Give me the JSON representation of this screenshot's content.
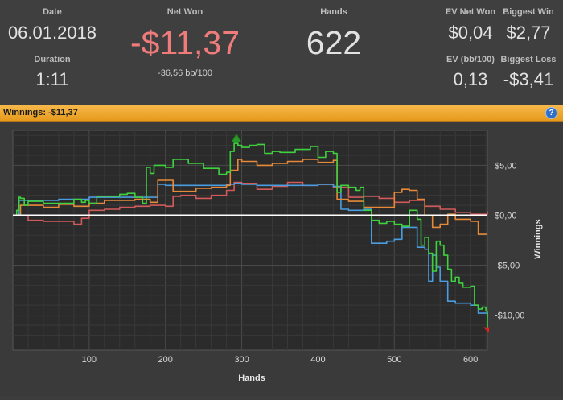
{
  "stats": {
    "date_label": "Date",
    "date_value": "06.01.2018",
    "duration_label": "Duration",
    "duration_value": "1:11",
    "net_won_label": "Net Won",
    "net_won_value": "-$11,37",
    "net_won_sub": "-36,56 bb/100",
    "hands_label": "Hands",
    "hands_value": "622",
    "ev_net_won_label": "EV Net Won",
    "ev_net_won_value": "$0,04",
    "biggest_win_label": "Biggest Win",
    "biggest_win_value": "$2,77",
    "ev_bb_label": "EV (bb/100)",
    "ev_bb_value": "0,13",
    "biggest_loss_label": "Biggest Loss",
    "biggest_loss_value": "-$3,41"
  },
  "panel": {
    "title": "Winnings: -$11,37",
    "help_glyph": "?"
  },
  "colors": {
    "net_won": "#f07b7b",
    "header_bar": "#f0a83a",
    "green": "#3ed23e",
    "orange": "#e68a3a",
    "blue": "#4a9de0",
    "red": "#d25a5a",
    "zero": "#ffffff"
  },
  "chart_data": {
    "type": "line",
    "xlabel": "Hands",
    "ylabel": "Winnings",
    "xlim": [
      0,
      622
    ],
    "ylim": [
      -13.5,
      8.5
    ],
    "x_ticks": [
      100,
      200,
      300,
      400,
      500,
      600
    ],
    "x_tick_labels": [
      "100",
      "200",
      "300",
      "400",
      "500",
      "600"
    ],
    "y_ticks": [
      5,
      0,
      -5,
      -10
    ],
    "y_tick_labels": [
      "$5,00",
      "$0,00",
      "-$5,00",
      "-$10,00"
    ],
    "grid": true,
    "markers": [
      {
        "type": "max",
        "x": 293,
        "y": 7.5,
        "color": "#2a9a2a"
      },
      {
        "type": "min",
        "x": 622,
        "y": -11.37,
        "color": "#e02020"
      }
    ],
    "series": [
      {
        "color": "#3ed23e",
        "x": [
          0,
          5,
          8,
          10,
          15,
          20,
          40,
          80,
          90,
          95,
          100,
          110,
          140,
          150,
          160,
          170,
          175,
          180,
          185,
          200,
          210,
          230,
          250,
          270,
          280,
          285,
          290,
          295,
          300,
          310,
          320,
          330,
          340,
          350,
          370,
          390,
          400,
          410,
          420,
          425,
          430,
          440,
          450,
          455,
          460,
          470,
          480,
          490,
          500,
          510,
          520,
          530,
          535,
          540,
          545,
          550,
          555,
          560,
          565,
          570,
          575,
          580,
          585,
          590,
          600,
          605,
          610,
          615,
          620,
          622
        ],
        "y": [
          0,
          0.5,
          1.8,
          1.7,
          1.0,
          1.4,
          1.2,
          1.6,
          1.3,
          1.5,
          1.2,
          1.9,
          2.1,
          2.2,
          1.8,
          1.2,
          4.8,
          4.2,
          5.0,
          4.8,
          5.6,
          5.2,
          4.7,
          4.1,
          4.3,
          6.4,
          7.2,
          7.0,
          6.8,
          7.0,
          7.1,
          6.2,
          6.4,
          6.3,
          6.6,
          6.9,
          5.8,
          6.4,
          6.2,
          2.3,
          3.0,
          2.8,
          2.5,
          2.8,
          0.5,
          -0.5,
          -0.8,
          -0.6,
          -0.9,
          -1.1,
          0.5,
          -0.4,
          -3.0,
          -2.2,
          -3.8,
          -5.6,
          -2.6,
          -3.0,
          -4.0,
          -5.4,
          -6.6,
          -6.2,
          -6.8,
          -7.2,
          -7.1,
          -9.0,
          -9.4,
          -9.2,
          -9.6,
          -11.37
        ]
      },
      {
        "color": "#e68a3a",
        "x": [
          0,
          10,
          20,
          40,
          60,
          80,
          100,
          120,
          160,
          180,
          190,
          210,
          240,
          260,
          280,
          285,
          295,
          300,
          320,
          340,
          360,
          380,
          400,
          420,
          425,
          440,
          460,
          480,
          500,
          510,
          520,
          530,
          540,
          550,
          560,
          570,
          580,
          600,
          610,
          622
        ],
        "y": [
          0,
          1.0,
          1.0,
          0.8,
          1.1,
          0.9,
          1.2,
          1.5,
          1.6,
          1.3,
          3.5,
          2.4,
          2.7,
          2.8,
          3.0,
          4.5,
          5.6,
          5.4,
          5.0,
          5.2,
          5.4,
          5.6,
          5.3,
          5.5,
          1.6,
          1.4,
          0.8,
          0.8,
          2.3,
          2.6,
          2.5,
          1.6,
          0.0,
          -1.2,
          -0.9,
          0.1,
          -0.4,
          -0.6,
          -1.9,
          -1.9
        ]
      },
      {
        "color": "#4a9de0",
        "x": [
          0,
          8,
          20,
          60,
          100,
          180,
          190,
          200,
          280,
          290,
          300,
          320,
          400,
          420,
          430,
          440,
          460,
          470,
          490,
          500,
          510,
          525,
          530,
          540,
          545,
          550,
          555,
          560,
          570,
          580,
          600,
          610,
          622
        ],
        "y": [
          0,
          1.5,
          1.5,
          1.6,
          1.8,
          1.8,
          3.1,
          3.0,
          3.1,
          3.2,
          3.1,
          3.0,
          3.1,
          2.9,
          0.6,
          0.5,
          0.6,
          -2.8,
          -2.6,
          -2.4,
          -1.2,
          -1.2,
          -3.2,
          -3.4,
          -6.6,
          -4.0,
          -5.2,
          -6.6,
          -8.6,
          -8.8,
          -9.0,
          -9.8,
          -10.2
        ]
      },
      {
        "color": "#d25a5a",
        "x": [
          0,
          20,
          40,
          60,
          80,
          90,
          100,
          120,
          140,
          160,
          180,
          200,
          210,
          220,
          240,
          260,
          280,
          290,
          300,
          320,
          340,
          360,
          380,
          400,
          420,
          440,
          460,
          480,
          500,
          520,
          540,
          560,
          580,
          600,
          622
        ],
        "y": [
          0,
          -0.5,
          -0.6,
          -0.6,
          -0.9,
          -0.3,
          0.5,
          0.6,
          0.8,
          0.9,
          1.0,
          0.9,
          1.9,
          2.0,
          1.7,
          2.0,
          2.5,
          3.3,
          3.2,
          2.6,
          2.9,
          3.3,
          3.0,
          3.1,
          2.8,
          1.8,
          1.9,
          1.7,
          1.3,
          1.5,
          0.9,
          0.6,
          0.3,
          0.1,
          0.4
        ]
      }
    ]
  }
}
